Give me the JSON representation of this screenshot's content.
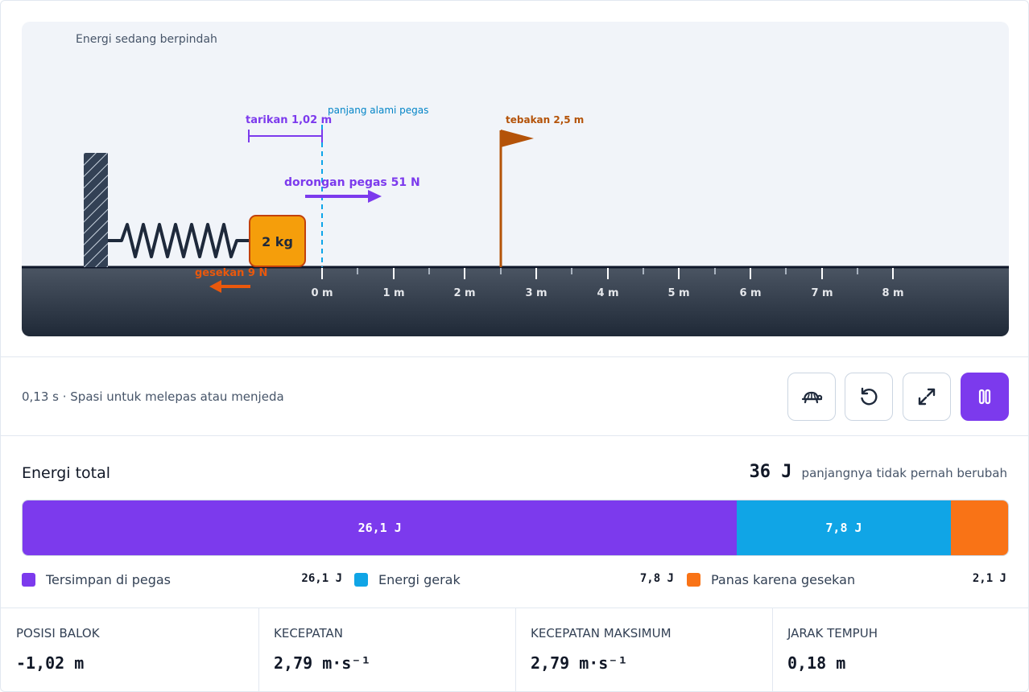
{
  "scene": {
    "caption": "Energi sedang berpindah",
    "stretch_label": "tarikan 1,02 m",
    "natural_length_label": "panjang alami pegas",
    "guess_flag_label": "tebakan 2,5 m",
    "spring_force_label": "dorongan pegas 51 N",
    "friction_label": "gesekan 9 N",
    "block_label": "2 kg",
    "ruler_ticks": [
      "0 m",
      "1 m",
      "2 m",
      "3 m",
      "4 m",
      "5 m",
      "6 m",
      "7 m",
      "8 m"
    ]
  },
  "status": {
    "text": "0,13 s · Spasi untuk melepas atau menjeda"
  },
  "controls": [
    {
      "name": "slow-motion-button",
      "icon": "turtle-icon"
    },
    {
      "name": "reset-button",
      "icon": "reset-icon"
    },
    {
      "name": "fullscreen-button",
      "icon": "expand-icon"
    },
    {
      "name": "pause-button",
      "icon": "pause-icon"
    }
  ],
  "energy": {
    "title": "Energi total",
    "total": "36 J",
    "total_note": "panjangnya tidak pernah berubah",
    "segments": [
      {
        "name": "Tersimpan di pegas",
        "value": "26,1 J",
        "amount": 26.1,
        "color": "#7c3aed"
      },
      {
        "name": "Energi gerak",
        "value": "7,8 J",
        "amount": 7.8,
        "color": "#10a5e6"
      },
      {
        "name": "Panas karena gesekan",
        "value": "2,1 J",
        "amount": 2.1,
        "color": "#f97316"
      }
    ]
  },
  "stats": [
    {
      "label": "POSISI BALOK",
      "value": "-1,02 m"
    },
    {
      "label": "KECEPATAN",
      "value": "2,79 m·s⁻¹"
    },
    {
      "label": "KECEPATAN MAKSIMUM",
      "value": "2,79 m·s⁻¹"
    },
    {
      "label": "JARAK TEMPUH",
      "value": "0,18 m"
    }
  ]
}
